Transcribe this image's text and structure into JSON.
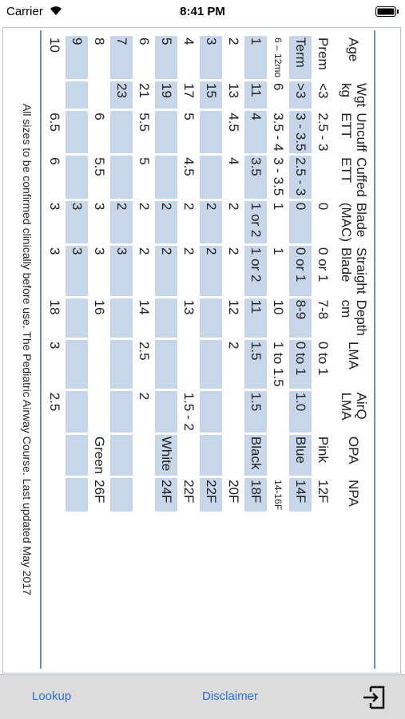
{
  "status_bar": {
    "carrier": "Carrier",
    "time": "8:41 PM"
  },
  "table": {
    "headers": [
      "Age",
      "Wgt kg",
      "Uncuff ETT",
      "Cuffed ETT",
      "Blade (MAC)",
      "Straight Blade",
      "Depth cm",
      "LMA",
      "AirQ LMA",
      "OPA",
      "NPA"
    ],
    "rows": [
      [
        "Prem",
        "<3",
        "2.5 - 3",
        null,
        "0",
        "0 or 1",
        "7-8",
        "0 to 1",
        null,
        "Pink",
        "12F"
      ],
      [
        "Term",
        ">3",
        "3 - 3.5",
        "2.5 - 3",
        "0",
        "0 or 1",
        "8-9",
        "0 to 1",
        "1.0",
        "Blue",
        "14F"
      ],
      [
        "6 – 12mo",
        "6",
        "3.5 - 4",
        "3 - 3.5",
        "1",
        "1",
        "10",
        "1 to 1.5",
        null,
        null,
        "14-16F"
      ],
      [
        "1",
        "11",
        "4",
        "3.5",
        "1 or 2",
        "1 or 2",
        "11",
        "1.5",
        "1.5",
        "Black",
        "18F"
      ],
      [
        "2",
        "13",
        "4.5",
        "4",
        "2",
        "2",
        "12",
        "2",
        null,
        null,
        "20F"
      ],
      [
        "3",
        "15",
        null,
        null,
        "2",
        "2",
        null,
        null,
        null,
        null,
        "22F"
      ],
      [
        "4",
        "17",
        "5",
        "4.5",
        "2",
        "2",
        "13",
        null,
        "1.5 - 2",
        null,
        "22F"
      ],
      [
        "5",
        "19",
        null,
        null,
        "2",
        "2",
        null,
        null,
        null,
        "White",
        "24F"
      ],
      [
        "6",
        "21",
        "5.5",
        "5",
        "2",
        "2",
        "14",
        "2.5",
        "2",
        null,
        null
      ],
      [
        "7",
        "23",
        null,
        null,
        "2",
        "3",
        null,
        null,
        null,
        null,
        null
      ],
      [
        "8",
        null,
        "6",
        "5.5",
        "3",
        "3",
        "16",
        null,
        null,
        "Green",
        "26F"
      ],
      [
        "9",
        null,
        null,
        null,
        "3",
        "3",
        null,
        null,
        null,
        null,
        null
      ],
      [
        "10",
        null,
        "6.5",
        "6",
        "3",
        "3",
        "18",
        "3",
        "2.5",
        null,
        null
      ]
    ]
  },
  "footer": "All sizes to be confirmed clinically before use. The Pediatric Airway Course. Last updated May 2017",
  "tab_bar": {
    "items": [
      "Lookup",
      "Disclaimer"
    ]
  }
}
